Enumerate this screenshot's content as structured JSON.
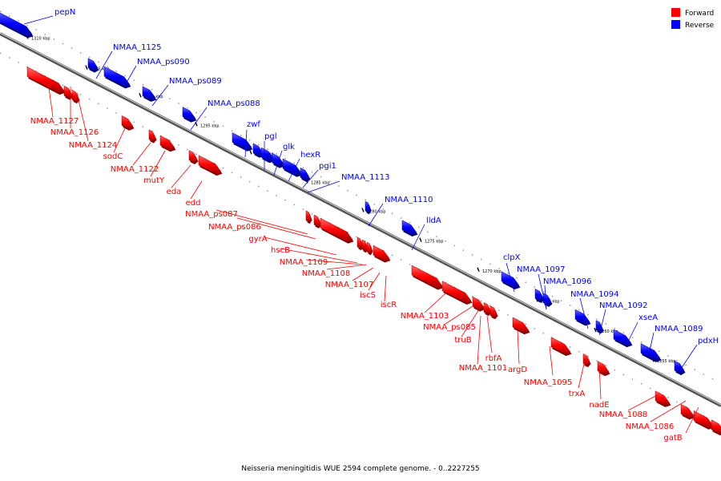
{
  "legend": {
    "forward_label": "Forward",
    "reverse_label": "Reverse",
    "forward_color": "#ff0000",
    "reverse_color": "#0000ff"
  },
  "caption": "Neisseria meningitidis WUE 2594 complete genome. - 0..2227255",
  "colors": {
    "forward": "#ff0000",
    "reverse": "#0000ff",
    "backbone": "#808080"
  },
  "ticks": [
    "1310 kbp",
    "1305 kbp",
    "1300 kbp",
    "1295 kbp",
    "1290 kbp",
    "1285 kbp",
    "1280 kbp",
    "1275 kbp",
    "1270 kbp",
    "1265 kbp",
    "1260 kbp",
    "1255 kbp"
  ],
  "reverse_labels": [
    "pepN",
    "NMAA_1125",
    "NMAA_ps090",
    "NMAA_ps089",
    "NMAA_ps088",
    "zwf",
    "pgl",
    "glk",
    "hexR",
    "pgi1",
    "NMAA_1113",
    "NMAA_1110",
    "lldA",
    "clpX",
    "NMAA_1097",
    "NMAA_1096",
    "NMAA_1094",
    "NMAA_1092",
    "xseA",
    "NMAA_1089",
    "pdxH"
  ],
  "forward_labels": [
    "NMAA_1127",
    "NMAA_1126",
    "NMAA_1124",
    "sodC",
    "NMAA_1122",
    "mutY",
    "eda",
    "edd",
    "NMAA_ps087",
    "NMAA_ps086",
    "gyrA",
    "hscB",
    "NMAA_1109",
    "NMAA_1108",
    "NMAA_1107",
    "iscS",
    "iscR",
    "NMAA_1103",
    "NMAA_ps085",
    "truB",
    "NMAA_1101",
    "rbfA",
    "argD",
    "NMAA_1095",
    "trxA",
    "nadE",
    "NMAA_1088",
    "NMAA_1086",
    "gatB"
  ]
}
